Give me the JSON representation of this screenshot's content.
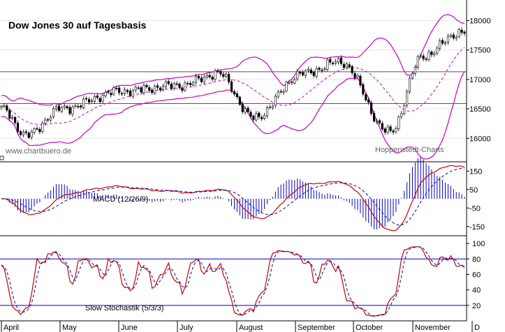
{
  "chart_data": [
    {
      "type": "candlestick",
      "title": "Dow Jones 30 auf Tagesbasis",
      "watermark": "www.chartbuero.de",
      "source_label": "Hoppenstedt-Charts",
      "ylim": [
        15600,
        18350
      ],
      "y_ticks": [
        16000,
        16500,
        17000,
        17500,
        18000
      ],
      "horizontal_lines": [
        17130,
        16590
      ],
      "x_months": [
        "April",
        "May",
        "June",
        "July",
        "August",
        "September",
        "October",
        "November",
        "D"
      ],
      "key_points": [
        {
          "date": "2014-04-01",
          "close": 16500
        },
        {
          "date": "2014-04-14",
          "close": 16050
        },
        {
          "date": "2014-05-01",
          "close": 16500
        },
        {
          "date": "2014-06-01",
          "close": 16800
        },
        {
          "date": "2014-07-01",
          "close": 16900
        },
        {
          "date": "2014-07-20",
          "close": 17100
        },
        {
          "date": "2014-08-07",
          "close": 16350
        },
        {
          "date": "2014-09-01",
          "close": 17100
        },
        {
          "date": "2014-09-20",
          "close": 17300
        },
        {
          "date": "2014-10-15",
          "close": 16100
        },
        {
          "date": "2014-11-01",
          "close": 17400
        },
        {
          "date": "2014-11-20",
          "close": 17800
        }
      ],
      "series": [
        {
          "role": "price",
          "color": "#000000"
        },
        {
          "role": "bollinger_upper",
          "color": "#cc00cc"
        },
        {
          "role": "bollinger_middle",
          "color": "#cc00cc"
        },
        {
          "role": "bollinger_lower",
          "color": "#cc00cc"
        }
      ]
    },
    {
      "type": "line",
      "label": "MACD (12/26/9)",
      "ylim": [
        -200,
        200
      ],
      "y_ticks": [
        150,
        50,
        -50,
        -150
      ],
      "series": [
        {
          "role": "macd",
          "color": "#cc0000"
        },
        {
          "role": "signal",
          "color": "#cc0000",
          "style": "dashed"
        },
        {
          "role": "histogram",
          "color": "#0000cc"
        }
      ]
    },
    {
      "type": "line",
      "label": "Slow Stochastik (5/3/3)",
      "ylim": [
        0,
        110
      ],
      "y_ticks": [
        100,
        80,
        60,
        40,
        20
      ],
      "reference_lines": [
        80,
        20
      ],
      "series": [
        {
          "role": "%K",
          "color": "#cc0000"
        },
        {
          "role": "%D",
          "color": "#0000cc",
          "style": "dashed"
        }
      ]
    }
  ]
}
